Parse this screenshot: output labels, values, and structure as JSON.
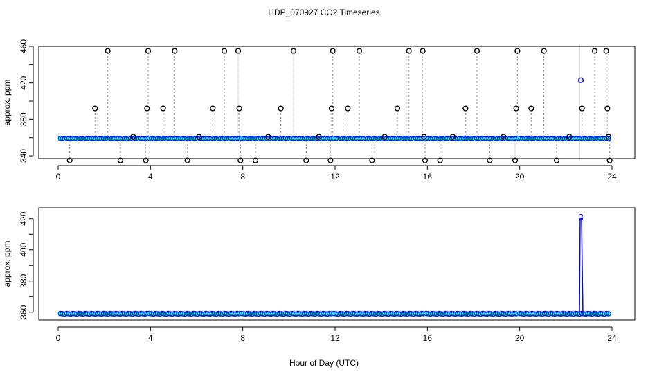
{
  "title": "HDP_070927  CO2 Timeseries",
  "xlabel": "Hour of Day (UTC)",
  "colors": {
    "axis": "#000000",
    "raw_points": "#000000",
    "mean_points": "#0000ff",
    "fill": "#00ffff",
    "line": "#00cc00",
    "connector": "#aaaaaa",
    "spike": "#0000ff"
  },
  "chart_data": [
    {
      "type": "scatter",
      "ylabel": "approx. ppm",
      "xlim": [
        0,
        24
      ],
      "ylim": [
        337,
        460
      ],
      "xticks": [
        0,
        4,
        8,
        12,
        16,
        20,
        24
      ],
      "yticks": [
        340,
        380,
        420,
        460
      ],
      "yticks_minor": [
        360,
        400,
        440
      ],
      "baseline_ppm": 359,
      "grouped_series": {
        "name": "",
        "y": 359,
        "x_ranges": [
          [
            0.1,
            3.85
          ],
          [
            3.95,
            7.85
          ],
          [
            7.95,
            11.85
          ],
          [
            11.95,
            15.85
          ],
          [
            15.95,
            19.85
          ],
          [
            19.95,
            23.85
          ]
        ]
      },
      "raw_points": [
        {
          "x": 0.5,
          "y": 335
        },
        {
          "x": 1.6,
          "y": 392
        },
        {
          "x": 2.15,
          "y": 455
        },
        {
          "x": 2.7,
          "y": 335
        },
        {
          "x": 3.25,
          "y": 361
        },
        {
          "x": 3.8,
          "y": 335
        },
        {
          "x": 3.85,
          "y": 392
        },
        {
          "x": 3.9,
          "y": 455
        },
        {
          "x": 4.55,
          "y": 392
        },
        {
          "x": 5.05,
          "y": 455
        },
        {
          "x": 5.6,
          "y": 335
        },
        {
          "x": 6.1,
          "y": 361
        },
        {
          "x": 6.7,
          "y": 392
        },
        {
          "x": 7.2,
          "y": 455
        },
        {
          "x": 7.8,
          "y": 455
        },
        {
          "x": 7.85,
          "y": 392
        },
        {
          "x": 7.9,
          "y": 335
        },
        {
          "x": 8.55,
          "y": 335
        },
        {
          "x": 9.1,
          "y": 361
        },
        {
          "x": 9.65,
          "y": 392
        },
        {
          "x": 10.2,
          "y": 455
        },
        {
          "x": 10.75,
          "y": 335
        },
        {
          "x": 11.3,
          "y": 361
        },
        {
          "x": 11.8,
          "y": 335
        },
        {
          "x": 11.85,
          "y": 392
        },
        {
          "x": 11.9,
          "y": 455
        },
        {
          "x": 12.55,
          "y": 392
        },
        {
          "x": 13.05,
          "y": 455
        },
        {
          "x": 13.6,
          "y": 335
        },
        {
          "x": 14.15,
          "y": 361
        },
        {
          "x": 14.7,
          "y": 392
        },
        {
          "x": 15.2,
          "y": 455
        },
        {
          "x": 15.8,
          "y": 455
        },
        {
          "x": 15.85,
          "y": 361
        },
        {
          "x": 15.9,
          "y": 335
        },
        {
          "x": 16.55,
          "y": 335
        },
        {
          "x": 17.1,
          "y": 361
        },
        {
          "x": 17.65,
          "y": 392
        },
        {
          "x": 18.15,
          "y": 455
        },
        {
          "x": 18.7,
          "y": 335
        },
        {
          "x": 19.3,
          "y": 361
        },
        {
          "x": 19.8,
          "y": 335
        },
        {
          "x": 19.85,
          "y": 392
        },
        {
          "x": 19.9,
          "y": 455
        },
        {
          "x": 20.5,
          "y": 392
        },
        {
          "x": 21.05,
          "y": 455
        },
        {
          "x": 21.6,
          "y": 335
        },
        {
          "x": 22.15,
          "y": 361
        },
        {
          "x": 22.7,
          "y": 392
        },
        {
          "x": 23.25,
          "y": 455
        },
        {
          "x": 23.75,
          "y": 455
        },
        {
          "x": 23.8,
          "y": 392
        },
        {
          "x": 23.85,
          "y": 361
        },
        {
          "x": 23.9,
          "y": 335
        }
      ],
      "highlight_points": [
        {
          "x": 22.65,
          "y": 423
        }
      ],
      "tall_lines": [
        {
          "x": 22.6,
          "y_from": 336,
          "y_to": 462
        }
      ]
    },
    {
      "type": "scatter",
      "ylabel": "approx. ppm",
      "xlim": [
        0,
        24
      ],
      "ylim": [
        355,
        427
      ],
      "xticks": [
        0,
        4,
        8,
        12,
        16,
        20,
        24
      ],
      "yticks": [
        360,
        380,
        400,
        420
      ],
      "yticks_minor": [
        370,
        390,
        410
      ],
      "grouped_series": {
        "name": "",
        "y": 359,
        "x_ranges": [
          [
            0.1,
            3.85
          ],
          [
            3.95,
            7.85
          ],
          [
            7.95,
            11.85
          ],
          [
            11.95,
            15.85
          ],
          [
            15.95,
            19.85
          ],
          [
            20.0,
            23.85
          ]
        ]
      },
      "spike": {
        "x": 22.65,
        "y": 420,
        "label": "3"
      }
    }
  ]
}
